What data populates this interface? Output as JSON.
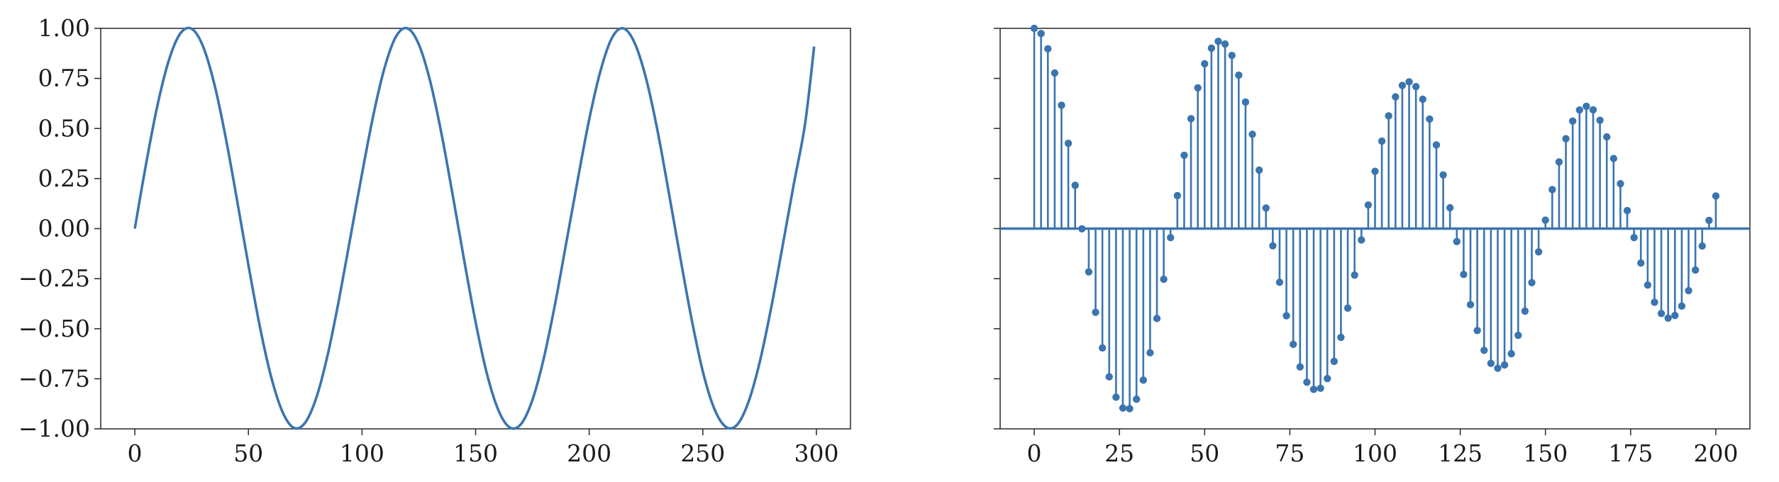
{
  "chart_data": [
    {
      "type": "line",
      "title": "",
      "xlabel": "",
      "ylabel": "",
      "color": "#3b75af",
      "xlim": [
        -15,
        315
      ],
      "ylim": [
        -1.0,
        1.0
      ],
      "xticks": [
        0,
        50,
        100,
        150,
        200,
        250,
        300
      ],
      "xtick_labels": [
        "0",
        "50",
        "100",
        "150",
        "200",
        "250",
        "300"
      ],
      "yticks": [
        1.0,
        0.75,
        0.5,
        0.25,
        0.0,
        -0.25,
        -0.5,
        -0.75,
        -1.0
      ],
      "ytick_labels": [
        "1.00",
        "0.75",
        "0.50",
        "0.25",
        "0.00",
        "−0.25",
        "−0.50",
        "−0.75",
        "−1.00"
      ],
      "grid": false,
      "series": [
        {
          "x": [
            0,
            5,
            10,
            15,
            20,
            25,
            30,
            35,
            40,
            45,
            50,
            55,
            60,
            65,
            70,
            75,
            80,
            85,
            90,
            95,
            100,
            105,
            110,
            115,
            120,
            125,
            130,
            135,
            140,
            145,
            150,
            155,
            160,
            165,
            170,
            175,
            180,
            185,
            190,
            195,
            200,
            205,
            210,
            215,
            220,
            225,
            230,
            235,
            240,
            245,
            250,
            255,
            260,
            265,
            270,
            275,
            280,
            285,
            290,
            295,
            299
          ],
          "y": [
            0.0,
            0.326,
            0.617,
            0.841,
            0.974,
            0.998,
            0.911,
            0.722,
            0.455,
            0.142,
            -0.182,
            -0.487,
            -0.74,
            -0.915,
            -0.995,
            -0.969,
            -0.841,
            -0.625,
            -0.347,
            -0.037,
            0.274,
            0.567,
            0.806,
            0.96,
            1.0,
            0.92,
            0.736,
            0.473,
            0.162,
            -0.16,
            -0.467,
            -0.726,
            -0.906,
            -0.993,
            -0.976,
            -0.856,
            -0.648,
            -0.375,
            -0.065,
            0.247,
            0.545,
            0.789,
            0.952,
            1.0,
            0.927,
            0.751,
            0.493,
            0.182,
            -0.139,
            -0.448,
            -0.713,
            -0.898,
            -0.989,
            -0.981,
            -0.869,
            -0.669,
            -0.401,
            -0.094,
            0.219,
            0.522,
            0.909
          ]
        }
      ]
    },
    {
      "type": "stem",
      "title": "",
      "xlabel": "",
      "ylabel": "",
      "color": "#3b75af",
      "xlim": [
        -10,
        210
      ],
      "ylim": [
        -1.0,
        1.0
      ],
      "sharey": true,
      "baseline": 0.0,
      "xticks": [
        0,
        25,
        50,
        75,
        100,
        125,
        150,
        175,
        200
      ],
      "xtick_labels": [
        "0",
        "25",
        "50",
        "75",
        "100",
        "125",
        "150",
        "175",
        "200"
      ],
      "yticks": [
        1.0,
        0.75,
        0.5,
        0.25,
        0.0,
        -0.25,
        -0.5,
        -0.75,
        -1.0
      ],
      "grid": false,
      "series": [
        {
          "x": [
            0,
            2,
            4,
            6,
            8,
            10,
            12,
            14,
            16,
            18,
            20,
            22,
            24,
            26,
            28,
            30,
            32,
            34,
            36,
            38,
            40,
            42,
            44,
            46,
            48,
            50,
            52,
            54,
            56,
            58,
            60,
            62,
            64,
            66,
            68,
            70,
            72,
            74,
            76,
            78,
            80,
            82,
            84,
            86,
            88,
            90,
            92,
            94,
            96,
            98,
            100,
            102,
            104,
            106,
            108,
            110,
            112,
            114,
            116,
            118,
            120,
            122,
            124,
            126,
            128,
            130,
            132,
            134,
            136,
            138,
            140,
            142,
            144,
            146,
            148,
            150,
            152,
            154,
            156,
            158,
            160,
            162,
            164,
            166,
            168,
            170,
            172,
            174,
            176,
            178,
            180,
            182,
            184,
            186,
            188,
            190,
            192,
            194,
            196,
            198,
            200
          ],
          "y": [
            1.0,
            0.974,
            0.898,
            0.777,
            0.616,
            0.426,
            0.216,
            -0.001,
            -0.216,
            -0.418,
            -0.596,
            -0.74,
            -0.842,
            -0.896,
            -0.899,
            -0.852,
            -0.757,
            -0.62,
            -0.449,
            -0.253,
            -0.045,
            0.165,
            0.366,
            0.549,
            0.703,
            0.823,
            0.901,
            0.935,
            0.922,
            0.865,
            0.766,
            0.632,
            0.471,
            0.292,
            0.103,
            -0.086,
            -0.268,
            -0.435,
            -0.578,
            -0.691,
            -0.767,
            -0.803,
            -0.797,
            -0.749,
            -0.663,
            -0.543,
            -0.397,
            -0.232,
            -0.057,
            0.118,
            0.286,
            0.437,
            0.563,
            0.658,
            0.715,
            0.733,
            0.709,
            0.646,
            0.547,
            0.418,
            0.268,
            0.104,
            -0.065,
            -0.229,
            -0.38,
            -0.509,
            -0.608,
            -0.673,
            -0.697,
            -0.681,
            -0.625,
            -0.533,
            -0.412,
            -0.27,
            -0.116,
            0.042,
            0.195,
            0.333,
            0.449,
            0.537,
            0.592,
            0.611,
            0.593,
            0.541,
            0.458,
            0.35,
            0.224,
            0.09,
            -0.045,
            -0.172,
            -0.282,
            -0.368,
            -0.424,
            -0.447,
            -0.434,
            -0.387,
            -0.31,
            -0.207,
            -0.087,
            0.041,
            0.163
          ]
        }
      ]
    }
  ]
}
